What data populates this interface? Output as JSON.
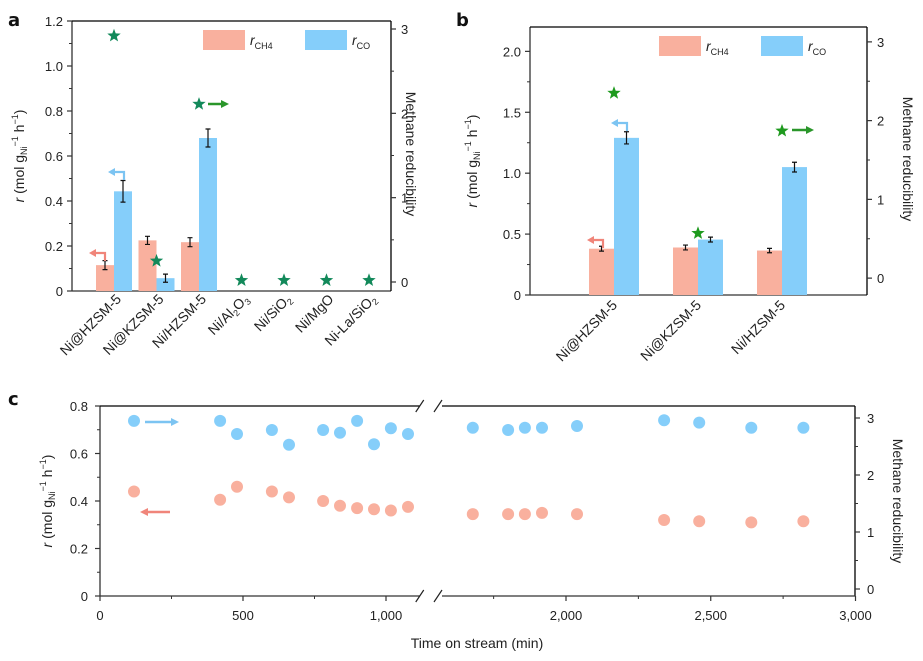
{
  "colors": {
    "ch4": "#F9B09E",
    "co": "#85CEFA",
    "star_a": "#12895A",
    "star_b": "#1E9A1E",
    "arrow_green": "#2A962A",
    "arrow_ch4": "#F0857A",
    "arrow_co": "#7CC4F2",
    "axis": "#333333"
  },
  "chart_data": [
    {
      "panel": "a",
      "type": "bar",
      "title": "",
      "categories": [
        "Ni@HZSM-5",
        "Ni@KZSM-5",
        "Ni/HZSM-5",
        "Ni/Al2O3",
        "Ni/SiO2",
        "Ni/MgO",
        "Ni-La/SiO2"
      ],
      "category_labels": [
        {
          "main": "Ni@HZSM-5"
        },
        {
          "main": "Ni@KZSM-5"
        },
        {
          "main": "Ni/HZSM-5"
        },
        {
          "main": "Ni/Al",
          "sub1": "2",
          "mid": "O",
          "sub2": "3"
        },
        {
          "main": "Ni/SiO",
          "sub1": "2"
        },
        {
          "main": "Ni/MgO"
        },
        {
          "main": "Ni-La/SiO",
          "sub1": "2"
        }
      ],
      "series": [
        {
          "name": "r_CH4",
          "axis": "left",
          "kind": "bar",
          "values": [
            0.115,
            0.225,
            0.217,
            null,
            null,
            null,
            null
          ],
          "errors": [
            0.02,
            0.018,
            0.02,
            null,
            null,
            null,
            null
          ]
        },
        {
          "name": "r_CO",
          "axis": "left",
          "kind": "bar",
          "values": [
            0.443,
            0.057,
            0.68,
            null,
            null,
            null,
            null
          ],
          "errors": [
            0.048,
            0.018,
            0.04,
            null,
            null,
            null,
            null
          ]
        },
        {
          "name": "Methane reducibility",
          "axis": "right",
          "kind": "star",
          "values": [
            2.92,
            0.25,
            2.11,
            0.02,
            0.02,
            0.02,
            0.02
          ]
        }
      ],
      "legend": [
        {
          "name": "r",
          "sub": "CH4",
          "color_key": "ch4"
        },
        {
          "name": "r",
          "sub": "CO",
          "color_key": "co"
        }
      ],
      "legend_position": "top-right",
      "ylabel": "r (mol gNi-1 h-1)",
      "ylabel_parts": {
        "r": "r",
        "pre": " (mol g",
        "sub": "Ni",
        "sup1": "−1",
        "mid": " h",
        "sup2": "−1",
        "post": ")"
      },
      "y2label": "Methane reducibility",
      "ylim": [
        0,
        1.2
      ],
      "yticks": [
        0,
        0.2,
        0.4,
        0.6,
        0.8,
        1.0,
        1.2
      ],
      "ytick_labels": [
        "0",
        "0.2",
        "0.4",
        "0.6",
        "0.8",
        "1.0",
        "1.2"
      ],
      "y2lim": [
        0,
        3
      ],
      "y2ticks": [
        0,
        1,
        2,
        3
      ],
      "grid": false
    },
    {
      "panel": "b",
      "type": "bar",
      "title": "",
      "categories": [
        "Ni@HZSM-5",
        "Ni@KZSM-5",
        "Ni/HZSM-5"
      ],
      "series": [
        {
          "name": "r_CH4",
          "axis": "left",
          "kind": "bar",
          "values": [
            0.38,
            0.39,
            0.365
          ],
          "errors": [
            0.02,
            0.02,
            0.018
          ]
        },
        {
          "name": "r_CO",
          "axis": "left",
          "kind": "bar",
          "values": [
            1.29,
            0.455,
            1.05
          ],
          "errors": [
            0.05,
            0.02,
            0.04
          ]
        },
        {
          "name": "Methane reducibility",
          "axis": "right",
          "kind": "star",
          "values": [
            2.35,
            0.57,
            1.87
          ]
        }
      ],
      "legend": [
        {
          "name": "r",
          "sub": "CH4",
          "color_key": "ch4"
        },
        {
          "name": "r",
          "sub": "CO",
          "color_key": "co"
        }
      ],
      "legend_position": "top-right",
      "ylabel": "r (mol gNi-1 h-1)",
      "y2label": "Methane reducibility",
      "ylim": [
        0,
        2.2
      ],
      "yticks": [
        0,
        0.5,
        1.0,
        1.5,
        2.0
      ],
      "ytick_labels": [
        "0",
        "0.5",
        "1.0",
        "1.5",
        "2.0"
      ],
      "y2lim": [
        -0.1,
        3.1
      ],
      "y2ticks": [
        0,
        1,
        2,
        3
      ],
      "grid": false
    },
    {
      "panel": "c",
      "type": "scatter",
      "title": "",
      "xlabel": "Time on stream (min)",
      "ylabel": "r (mol gNi-1 h-1)",
      "y2label": "Methane reducibility",
      "xlim": [
        0,
        3000
      ],
      "xticks": [
        0,
        500,
        1000,
        2000,
        2500,
        3000
      ],
      "xtick_labels": [
        "0",
        "500",
        "1,000",
        "2,000",
        "2,500",
        "3,000"
      ],
      "x_break": [
        1125,
        1570
      ],
      "ylim": [
        0,
        0.8
      ],
      "yticks": [
        0,
        0.2,
        0.4,
        0.6,
        0.8
      ],
      "ytick_labels": [
        "0",
        "0.2",
        "0.4",
        "0.6",
        "0.8"
      ],
      "y2lim": [
        -0.1,
        3.2
      ],
      "y2ticks": [
        0,
        1,
        2,
        3
      ],
      "series": [
        {
          "name": "Methane reducibility",
          "axis": "right",
          "color_key": "co",
          "x": [
            119,
            420,
            479,
            601,
            661,
            780,
            839,
            899,
            958,
            1017,
            1077,
            1678,
            1800,
            1858,
            1917,
            2038,
            2339,
            2460,
            2640,
            2820
          ],
          "y": [
            2.95,
            2.95,
            2.72,
            2.79,
            2.53,
            2.79,
            2.74,
            2.95,
            2.54,
            2.82,
            2.72,
            2.83,
            2.79,
            2.83,
            2.83,
            2.86,
            2.96,
            2.92,
            2.83,
            2.83
          ]
        },
        {
          "name": "r",
          "axis": "left",
          "color_key": "ch4",
          "x": [
            119,
            420,
            479,
            601,
            661,
            780,
            839,
            899,
            958,
            1017,
            1077,
            1678,
            1800,
            1858,
            1917,
            2038,
            2339,
            2460,
            2640,
            2820
          ],
          "y": [
            0.44,
            0.405,
            0.46,
            0.44,
            0.415,
            0.4,
            0.38,
            0.37,
            0.365,
            0.36,
            0.375,
            0.345,
            0.345,
            0.345,
            0.35,
            0.345,
            0.32,
            0.315,
            0.31,
            0.315
          ]
        }
      ],
      "grid": false
    }
  ],
  "labels": {
    "panel_a": "a",
    "panel_b": "b",
    "panel_c": "c"
  }
}
